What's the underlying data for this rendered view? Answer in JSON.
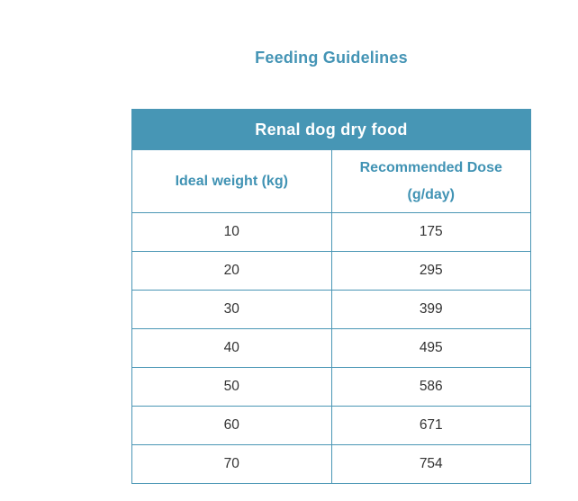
{
  "page": {
    "title": "Feeding Guidelines"
  },
  "table": {
    "title": "Renal dog dry food",
    "columns": {
      "col1": "Ideal weight (kg)",
      "col2_line1": "Recommended Dose",
      "col2_line2": "(g/day)"
    },
    "rows": [
      [
        "10",
        "175"
      ],
      [
        "20",
        "295"
      ],
      [
        "30",
        "399"
      ],
      [
        "40",
        "495"
      ],
      [
        "50",
        "586"
      ],
      [
        "60",
        "671"
      ],
      [
        "70",
        "754"
      ]
    ]
  },
  "colors": {
    "accent_teal": "#4796b5",
    "title_text": "#4494b5",
    "table_border": "#4a96b5",
    "header_text_on_teal": "#ffffff",
    "body_text": "#333333",
    "background": "#ffffff"
  }
}
